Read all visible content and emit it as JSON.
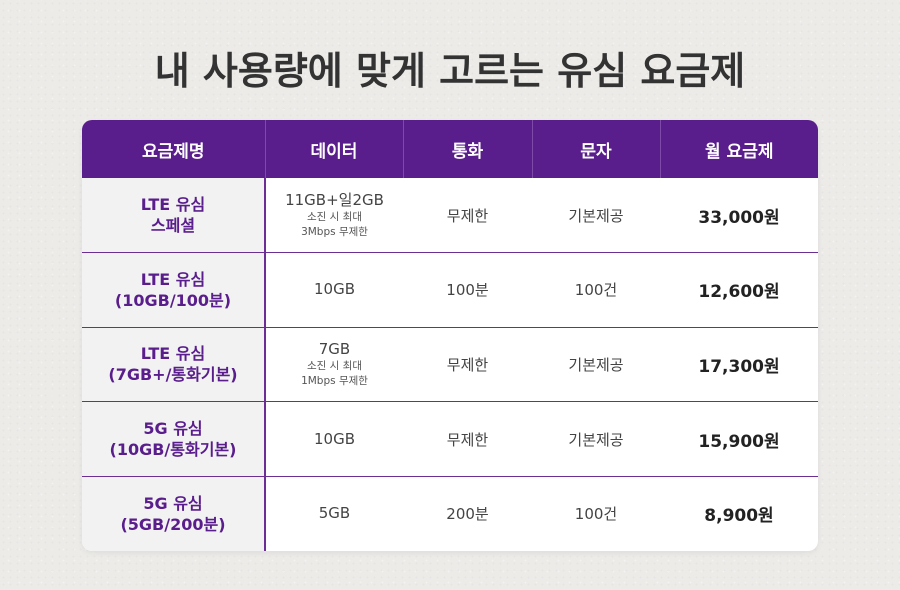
{
  "headline": "내 사용량에 맞게 고르는 유심 요금제",
  "columns": [
    "요금제명",
    "데이터",
    "통화",
    "문자",
    "월 요금제"
  ],
  "plans": [
    {
      "name": [
        "LTE 유심",
        "스페셜"
      ],
      "data_main": "11GB+일2GB",
      "data_sub": [
        "소진 시 최대",
        "3Mbps 무제한"
      ],
      "call": "무제한",
      "sms": "기본제공",
      "price": "33,000원"
    },
    {
      "name": [
        "LTE 유심",
        "(10GB/100분)"
      ],
      "data_main": "10GB",
      "data_sub": [],
      "call": "100분",
      "sms": "100건",
      "price": "12,600원"
    },
    {
      "name": [
        "LTE 유심",
        "(7GB+/통화기본)"
      ],
      "data_main": "7GB",
      "data_sub": [
        "소진 시 최대",
        "1Mbps 무제한"
      ],
      "call": "무제한",
      "sms": "기본제공",
      "price": "17,300원"
    },
    {
      "name": [
        "5G 유심",
        "(10GB/통화기본)"
      ],
      "data_main": "10GB",
      "data_sub": [],
      "call": "무제한",
      "sms": "기본제공",
      "price": "15,900원"
    },
    {
      "name": [
        "5G 유심",
        "(5GB/200분)"
      ],
      "data_main": "5GB",
      "data_sub": [],
      "call": "200분",
      "sms": "100건",
      "price": "8,900원"
    }
  ],
  "colors": {
    "header_bg": "#5a1d8c",
    "accent_text": "#5a1d8c",
    "name_cell_bg": "#f2f2f2"
  }
}
